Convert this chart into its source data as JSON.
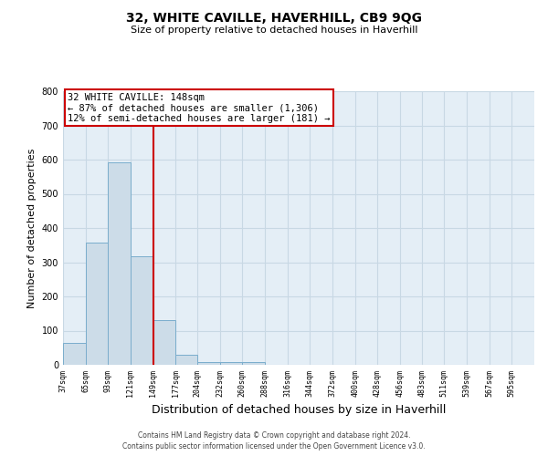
{
  "title": "32, WHITE CAVILLE, HAVERHILL, CB9 9QG",
  "subtitle": "Size of property relative to detached houses in Haverhill",
  "xlabel": "Distribution of detached houses by size in Haverhill",
  "ylabel": "Number of detached properties",
  "bar_left_edges": [
    37,
    65,
    93,
    121,
    149,
    177,
    204,
    232,
    260,
    288,
    316,
    344,
    372,
    400,
    428,
    456,
    483,
    511,
    539,
    567
  ],
  "bar_widths": [
    28,
    28,
    28,
    28,
    28,
    27,
    28,
    28,
    28,
    28,
    28,
    28,
    28,
    28,
    28,
    27,
    28,
    28,
    28,
    28
  ],
  "bar_heights": [
    65,
    358,
    593,
    318,
    130,
    30,
    8,
    8,
    8,
    0,
    0,
    0,
    0,
    0,
    0,
    0,
    0,
    0,
    0,
    0
  ],
  "bar_color": "#ccdce8",
  "bar_edge_color": "#7aadcc",
  "tick_labels": [
    "37sqm",
    "65sqm",
    "93sqm",
    "121sqm",
    "149sqm",
    "177sqm",
    "204sqm",
    "232sqm",
    "260sqm",
    "288sqm",
    "316sqm",
    "344sqm",
    "372sqm",
    "400sqm",
    "428sqm",
    "456sqm",
    "483sqm",
    "511sqm",
    "539sqm",
    "567sqm",
    "595sqm"
  ],
  "vline_x": 149,
  "vline_color": "#cc0000",
  "annotation_box_text": "32 WHITE CAVILLE: 148sqm\n← 87% of detached houses are smaller (1,306)\n12% of semi-detached houses are larger (181) →",
  "annotation_box_color": "#cc0000",
  "annotation_text_color": "#000000",
  "ylim": [
    0,
    800
  ],
  "yticks": [
    0,
    100,
    200,
    300,
    400,
    500,
    600,
    700,
    800
  ],
  "grid_color": "#c8d8e4",
  "background_color": "#e4eef6",
  "footer_line1": "Contains HM Land Registry data © Crown copyright and database right 2024.",
  "footer_line2": "Contains public sector information licensed under the Open Government Licence v3.0."
}
